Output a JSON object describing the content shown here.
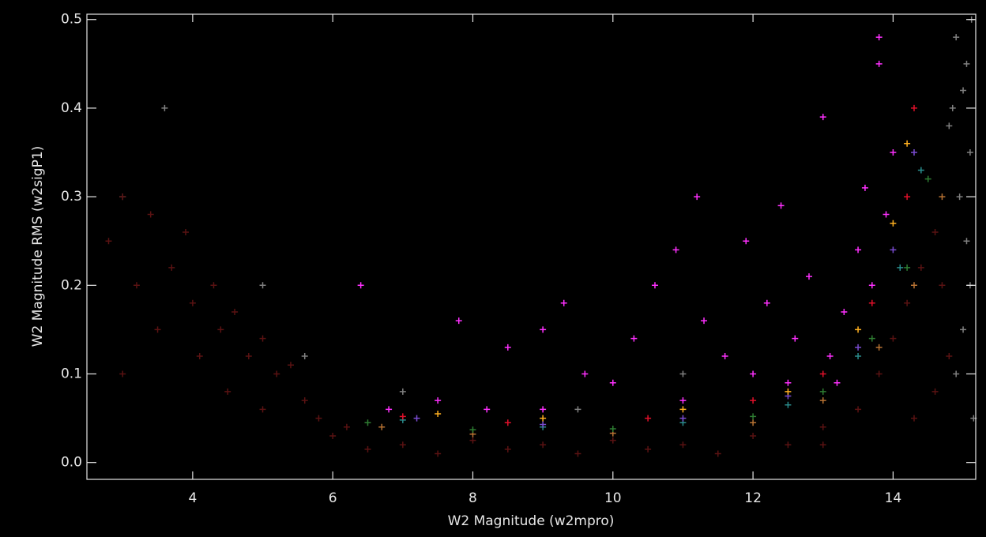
{
  "chart_data": {
    "type": "scatter",
    "x_label": "W2 Magnitude (w2mpro)",
    "y_label": "W2 Magnitude RMS (w2sigP1)",
    "xlim": [
      2.49,
      15.18
    ],
    "ylim": [
      -0.019,
      0.506
    ],
    "xticks": [
      4,
      6,
      8,
      10,
      12,
      14
    ],
    "yticks": [
      {
        "value": 0,
        "label": "0.0"
      },
      0.1,
      0.2,
      0.3,
      0.4,
      0.5
    ],
    "series": [
      {
        "color": "#808080",
        "x": [
          14.9,
          15.0,
          15.1,
          14.95,
          15.05,
          15.1,
          15.0,
          14.9,
          15.15,
          15.05,
          14.8,
          15.12,
          14.85,
          3.0,
          5.0,
          7.0,
          9.5,
          11.0,
          3.6,
          5.6
        ],
        "y": [
          0.48,
          0.42,
          0.35,
          0.3,
          0.25,
          0.2,
          0.15,
          0.1,
          0.05,
          0.45,
          0.38,
          0.5,
          0.4,
          0.3,
          0.2,
          0.08,
          0.06,
          0.1,
          0.4,
          0.12
        ]
      },
      {
        "color": "#5a1212",
        "x": [
          2.8,
          3.0,
          3.2,
          3.4,
          3.5,
          3.7,
          3.9,
          4.0,
          4.1,
          4.3,
          4.4,
          4.6,
          4.8,
          5.0,
          5.2,
          5.4,
          5.6,
          5.8,
          6.0,
          6.2,
          6.5,
          7.0,
          7.5,
          8.0,
          8.5,
          9.0,
          9.5,
          10.0,
          10.5,
          11.0,
          11.5,
          12.0,
          12.5,
          13.0,
          13.5,
          13.8,
          14.0,
          14.2,
          14.4,
          14.6,
          14.7,
          14.8,
          14.6,
          14.3,
          13.0,
          4.5,
          3.0,
          5.0
        ],
        "y": [
          0.25,
          0.3,
          0.2,
          0.28,
          0.15,
          0.22,
          0.26,
          0.18,
          0.12,
          0.2,
          0.15,
          0.17,
          0.12,
          0.14,
          0.1,
          0.11,
          0.07,
          0.05,
          0.03,
          0.04,
          0.015,
          0.02,
          0.01,
          0.025,
          0.015,
          0.02,
          0.01,
          0.025,
          0.015,
          0.02,
          0.01,
          0.03,
          0.02,
          0.04,
          0.06,
          0.1,
          0.14,
          0.18,
          0.22,
          0.26,
          0.2,
          0.12,
          0.08,
          0.05,
          0.02,
          0.08,
          0.1,
          0.06
        ]
      },
      {
        "color": "#b87333",
        "x": [
          6.7,
          8.0,
          10.0,
          12.0,
          13.0,
          13.8,
          14.3,
          14.7
        ],
        "y": [
          0.04,
          0.032,
          0.033,
          0.045,
          0.07,
          0.13,
          0.2,
          0.3
        ]
      },
      {
        "color": "#2e7d32",
        "x": [
          6.5,
          8.0,
          10.0,
          12.0,
          13.0,
          13.7,
          14.2,
          14.5
        ],
        "y": [
          0.045,
          0.037,
          0.038,
          0.052,
          0.08,
          0.14,
          0.22,
          0.32
        ]
      },
      {
        "color": "#2a8c8c",
        "x": [
          7.0,
          9.0,
          11.0,
          12.5,
          13.5,
          14.1,
          14.4
        ],
        "y": [
          0.048,
          0.04,
          0.045,
          0.065,
          0.12,
          0.22,
          0.33
        ]
      },
      {
        "color": "#7a4bd0",
        "x": [
          7.2,
          9.0,
          11.0,
          12.5,
          13.5,
          14.0,
          14.3
        ],
        "y": [
          0.05,
          0.043,
          0.05,
          0.075,
          0.13,
          0.24,
          0.35
        ]
      },
      {
        "color": "#e0102a",
        "x": [
          7.0,
          8.5,
          10.5,
          12.0,
          13.0,
          13.7,
          14.2,
          14.3
        ],
        "y": [
          0.052,
          0.045,
          0.05,
          0.07,
          0.1,
          0.18,
          0.3,
          0.4
        ]
      },
      {
        "color": "#ffb020",
        "x": [
          7.5,
          9.0,
          11.0,
          12.5,
          13.5,
          14.0,
          14.2
        ],
        "y": [
          0.055,
          0.05,
          0.06,
          0.08,
          0.15,
          0.27,
          0.36
        ]
      },
      {
        "color": "#ff30ff",
        "x": [
          6.4,
          6.8,
          7.5,
          7.8,
          8.2,
          8.5,
          9.0,
          9.3,
          9.6,
          10.0,
          10.3,
          10.6,
          10.9,
          11.2,
          11.3,
          11.6,
          11.9,
          12.0,
          12.2,
          12.4,
          12.6,
          12.8,
          13.0,
          13.1,
          13.3,
          13.5,
          13.6,
          13.7,
          13.8,
          13.9,
          14.0,
          12.5,
          11.0,
          9.0,
          13.2,
          13.8
        ],
        "y": [
          0.2,
          0.06,
          0.07,
          0.16,
          0.06,
          0.13,
          0.15,
          0.18,
          0.1,
          0.09,
          0.14,
          0.2,
          0.24,
          0.3,
          0.16,
          0.12,
          0.25,
          0.1,
          0.18,
          0.29,
          0.14,
          0.21,
          0.39,
          0.12,
          0.17,
          0.24,
          0.31,
          0.2,
          0.45,
          0.28,
          0.35,
          0.09,
          0.07,
          0.06,
          0.09,
          0.48
        ]
      }
    ]
  }
}
